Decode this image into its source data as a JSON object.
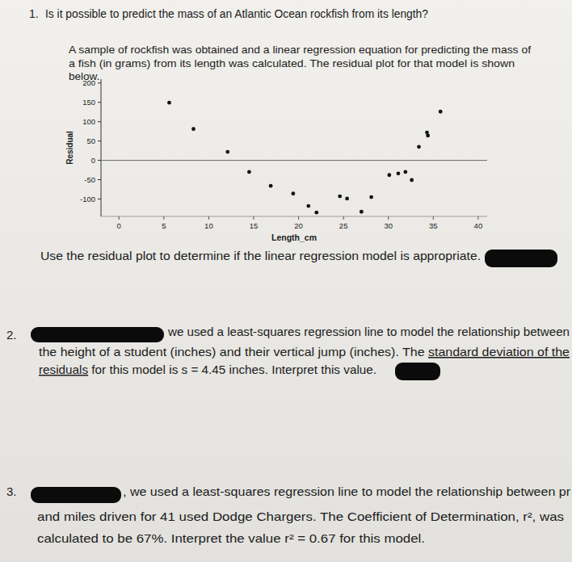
{
  "questions": [
    {
      "number": "1.",
      "prompt": "Is it possible to predict the mass of an Atlantic Ocean rockfish from its length?",
      "lines": [
        "A sample of rockfish was obtained and a linear regression equation for predicting the mass of",
        "a fish (in grams) from its length was calculated. The residual plot for that model is shown",
        "below."
      ],
      "instruction": "Use the residual plot to determine if the linear regression model is appropriate."
    },
    {
      "number": "2.",
      "lines": [
        [
          {
            "text": "we used a least-squares regression line to model the relationship between"
          }
        ],
        [
          {
            "text": "the height of a student (inches) and their vertical jump (inches). The "
          },
          {
            "text": "standard deviation of the",
            "underline": true
          }
        ],
        [
          {
            "text": "residuals",
            "underline": true
          },
          {
            "text": " for this model is s = 4.45 inches. Interpret this value."
          }
        ]
      ]
    },
    {
      "number": "3.",
      "lines": [
        [
          {
            "text": ", we used a least-squares regression line to model the relationship between pr"
          }
        ],
        [
          {
            "text": "and miles driven for 41 used Dodge Chargers. The Coefficient of Determination, r², was"
          }
        ],
        [
          {
            "text": "calculated to be 67%. Interpret the value r² = 0.67 for this model."
          }
        ]
      ]
    }
  ],
  "chart_data": {
    "type": "scatter",
    "x_label": "Length_cm",
    "y_label": "Residual",
    "x": [
      5.6,
      8.3,
      12.1,
      14.5,
      16.9,
      19.4,
      21.1,
      22.0,
      24.6,
      25.4,
      27.0,
      28.1,
      30.1,
      31.1,
      31.9,
      32.6,
      33.4,
      34.3,
      34.4,
      35.8
    ],
    "values": [
      149,
      81,
      22,
      -30,
      -66,
      -86,
      -118,
      -135,
      -93,
      -99,
      -133,
      -95,
      -38,
      -34,
      -30,
      -51,
      35,
      72,
      64,
      126
    ],
    "xlim": [
      -2,
      41
    ],
    "ylim": [
      -145,
      210
    ],
    "xticks": [
      0,
      5,
      10,
      15,
      20,
      25,
      30,
      35,
      40
    ],
    "yticks": [
      -100,
      -50,
      0,
      50,
      100,
      150,
      200
    ],
    "hline": 0,
    "grid": false,
    "color": "#141414",
    "marker": "circle"
  }
}
